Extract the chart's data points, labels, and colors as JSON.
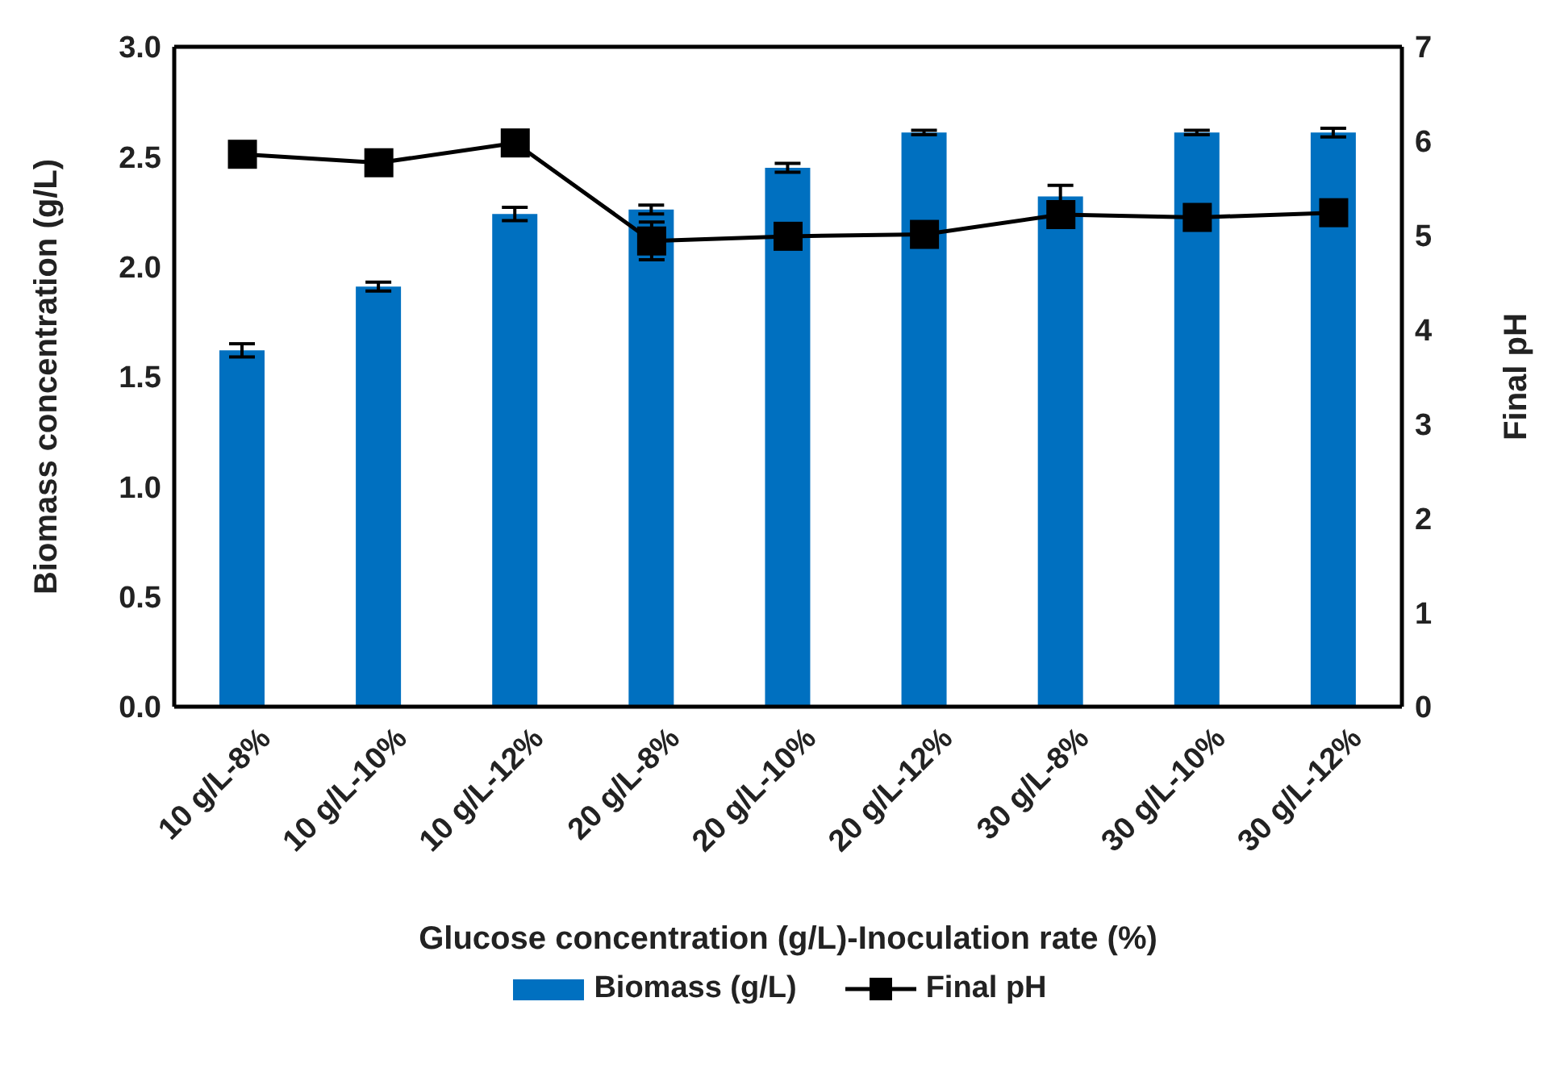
{
  "chart_data": {
    "type": "bar",
    "xlabel": "Glucose concentration (g/L)-Inoculation rate (%)",
    "ylabel": "Biomass concentration (g/L)",
    "y2label": "Final pH",
    "categories": [
      "10 g/L-8%",
      "10 g/L-10%",
      "10 g/L-12%",
      "20 g/L-8%",
      "20 g/L-10%",
      "20 g/L-12%",
      "30 g/L-8%",
      "30 g/L-10%",
      "30 g/L-12%"
    ],
    "series": [
      {
        "name": "Biomass (g/L)",
        "color": "#0070c0",
        "values": [
          1.62,
          1.91,
          2.24,
          2.26,
          2.45,
          2.61,
          2.32,
          2.61,
          2.61
        ],
        "errors": [
          0.03,
          0.02,
          0.03,
          0.02,
          0.02,
          0.01,
          0.05,
          0.01,
          0.02
        ]
      },
      {
        "name": "Final pH",
        "type": "line",
        "axis": "y2",
        "color": "#000000",
        "marker": "square",
        "values": [
          5.86,
          5.77,
          5.98,
          4.94,
          4.99,
          5.01,
          5.22,
          5.19,
          5.24
        ],
        "errors": [
          null,
          null,
          null,
          0.2,
          null,
          null,
          null,
          null,
          null
        ]
      }
    ],
    "ylim": [
      0,
      3
    ],
    "yticks": [
      {
        "value": 0,
        "label": "0.0"
      },
      0.5,
      {
        "value": 1,
        "label": "1.0"
      },
      1.5,
      {
        "value": 2,
        "label": "2.0"
      },
      2.5,
      {
        "value": 3,
        "label": "3.0"
      }
    ],
    "y2lim": [
      0,
      7
    ],
    "y2ticks": [
      0,
      1,
      2,
      3,
      4,
      5,
      6,
      7
    ],
    "grid": false,
    "legend": "bottom"
  }
}
